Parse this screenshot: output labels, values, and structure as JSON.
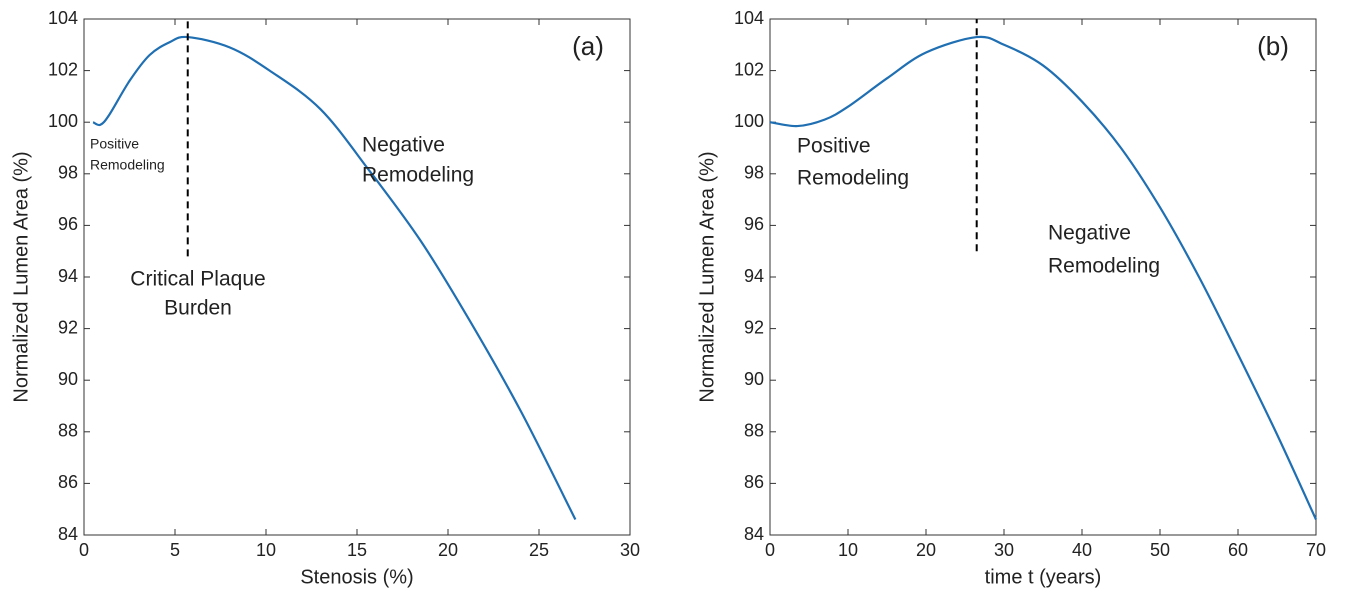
{
  "chart_data": [
    {
      "type": "line",
      "panel_label": "(a)",
      "xlabel": "Stenosis (%)",
      "ylabel": "Normalized Lumen Area (%)",
      "x": [
        0.5,
        0.9,
        1.4,
        2.5,
        3.6,
        4.7,
        5.7,
        8.0,
        10.2,
        13,
        15.7,
        18.5,
        21.2,
        24,
        27
      ],
      "values": [
        100,
        99.9,
        100.3,
        101.6,
        102.6,
        103.1,
        103.3,
        102.9,
        102.0,
        100.5,
        98.1,
        95.4,
        92.3,
        88.8,
        84.6
      ],
      "color": "#1f6fb2",
      "xlim": [
        0,
        30
      ],
      "ylim": [
        84,
        104
      ],
      "xticks": [
        0,
        5,
        10,
        15,
        20,
        25,
        30
      ],
      "yticks": [
        84,
        86,
        88,
        90,
        92,
        94,
        96,
        98,
        100,
        102,
        104
      ],
      "reference_line": {
        "x": 5.7,
        "y": [
          94.8,
          104
        ]
      },
      "annotations": [
        [
          "Positive",
          "Remodeling"
        ],
        [
          "Critical Plaque",
          "Burden"
        ],
        [
          "Negative",
          "Remodeling"
        ]
      ]
    },
    {
      "type": "line",
      "panel_label": "(b)",
      "xlabel": "time t (years)",
      "ylabel": "Normalized Lumen Area (%)",
      "x": [
        0,
        3.5,
        7,
        10,
        15,
        20,
        26.5,
        30,
        35,
        40,
        45,
        50,
        55,
        60,
        65,
        70
      ],
      "values": [
        100,
        99.85,
        100.1,
        100.6,
        101.7,
        102.7,
        103.3,
        103.0,
        102.2,
        100.8,
        99.0,
        96.7,
        94.0,
        91.0,
        87.9,
        84.6
      ],
      "color": "#1f6fb2",
      "xlim": [
        0,
        70
      ],
      "ylim": [
        84,
        104
      ],
      "xticks": [
        0,
        10,
        20,
        30,
        40,
        50,
        60,
        70
      ],
      "yticks": [
        84,
        86,
        88,
        90,
        92,
        94,
        96,
        98,
        100,
        102,
        104
      ],
      "reference_line": {
        "x": 26.5,
        "y": [
          95.0,
          104
        ]
      },
      "annotations": [
        [
          "Positive",
          "Remodeling"
        ],
        [
          "Negative",
          "Remodeling"
        ]
      ]
    }
  ]
}
